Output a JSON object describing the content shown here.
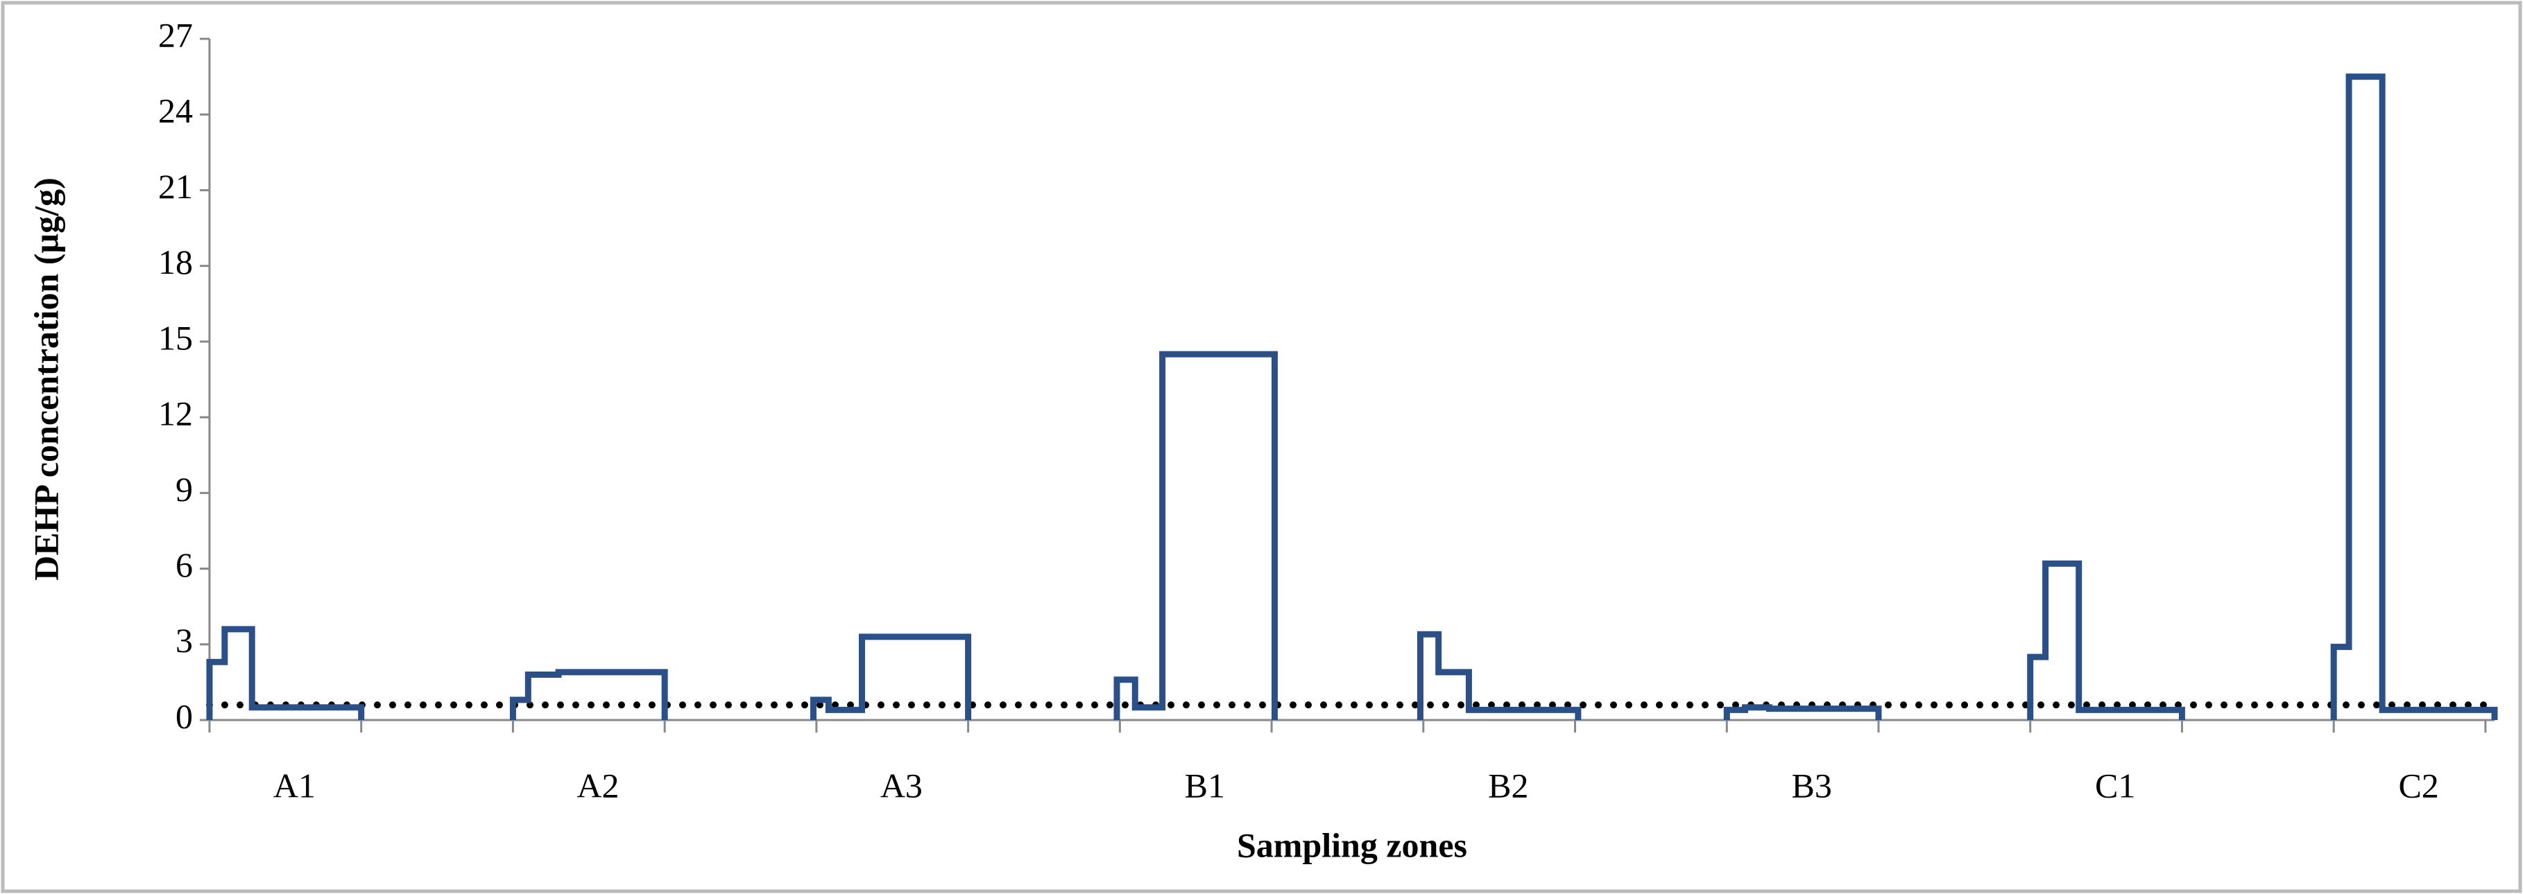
{
  "chart_data": {
    "type": "step",
    "y_label": "DEHP concentration  (µg/g)",
    "x_label": "Sampling zones",
    "categories": [
      "A1",
      "A2",
      "A3",
      "B1",
      "B2",
      "B3",
      "C1",
      "C2"
    ],
    "series": [
      {
        "color": "#2a5087",
        "x": [
          0,
          0.05,
          0.14,
          0.5,
          null,
          1.0,
          1.05,
          1.15,
          1.5,
          null,
          1.99,
          2.04,
          2.15,
          2.5,
          null,
          2.99,
          3.05,
          3.14,
          3.51,
          null,
          3.99,
          4.05,
          4.15,
          4.51,
          null,
          5.0,
          5.06,
          5.14,
          5.5,
          null,
          6.0,
          6.05,
          6.16,
          6.5,
          null,
          7.0,
          7.05,
          7.16,
          7.53
        ],
        "values": [
          2.3,
          3.6,
          0.5,
          0,
          null,
          0.8,
          1.8,
          1.9,
          0,
          null,
          0.8,
          0.4,
          3.3,
          0,
          null,
          1.6,
          0.5,
          14.5,
          0,
          null,
          3.4,
          1.9,
          0.4,
          0,
          null,
          0.4,
          0.5,
          0.45,
          0,
          null,
          2.5,
          6.2,
          0.4,
          0,
          null,
          2.9,
          25.5,
          0.4,
          0
        ]
      }
    ],
    "reference_line": 0.6,
    "xlim": [
      0,
      7.53
    ],
    "xticks": [
      0,
      0.5,
      1,
      1.5,
      2,
      2.5,
      3,
      3.5,
      4,
      4.5,
      5,
      5.5,
      6,
      6.5,
      7,
      7.5
    ],
    "ylim": [
      0,
      27
    ],
    "yticks": [
      0,
      3,
      6,
      9,
      12,
      15,
      18,
      21,
      24,
      27
    ]
  }
}
